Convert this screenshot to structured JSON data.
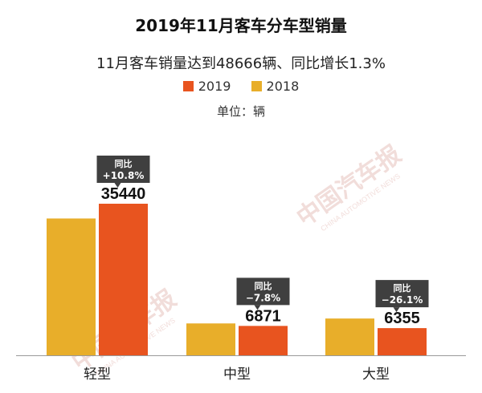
{
  "chart_data": {
    "type": "bar",
    "title": "2019年11月客车分车型销量",
    "subtitle": "11月客车销量达到48666辆、同比增长1.3%",
    "unit_label": "单位：辆",
    "categories": [
      "轻型",
      "中型",
      "大型"
    ],
    "series": [
      {
        "name": "2018",
        "color": "#e8ae2a",
        "values": [
          31985,
          7453,
          8600
        ]
      },
      {
        "name": "2019",
        "color": "#e8541f",
        "values": [
          35440,
          6871,
          6355
        ]
      }
    ],
    "data_labels": [
      "35440",
      "6871",
      "6355"
    ],
    "yoy_labels": [
      {
        "line1": "同比",
        "line2": "+10.8%"
      },
      {
        "line1": "同比",
        "line2": "−7.8%"
      },
      {
        "line1": "同比",
        "line2": "−26.1%"
      }
    ],
    "legend_order": [
      "2019",
      "2018"
    ],
    "legend_position": "top-center",
    "grid": false,
    "ylim": [
      0,
      35440
    ]
  },
  "watermark": {
    "logo_text": "中国汽车报",
    "en_text": "CHINA AUTOMOTIVE NEWS"
  }
}
